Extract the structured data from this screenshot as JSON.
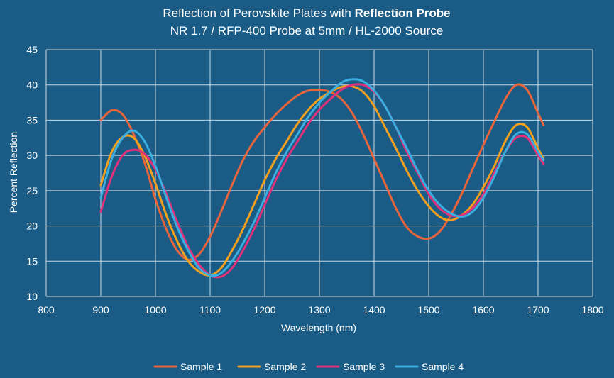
{
  "chart_data": {
    "type": "line",
    "title_main": "Reflection of Perovskite Plates with ",
    "title_bold": "Reflection Probe",
    "subtitle": "NR 1.7 / RFP-400 Probe at 5mm / HL-2000 Source",
    "xlabel": "Wavelength (nm)",
    "ylabel": "Percent Reflection",
    "xlim": [
      800,
      1800
    ],
    "ylim": [
      10,
      45
    ],
    "x_ticks": [
      800,
      900,
      1000,
      1100,
      1200,
      1300,
      1400,
      1500,
      1600,
      1700,
      1800
    ],
    "y_ticks": [
      10,
      15,
      20,
      25,
      30,
      35,
      40,
      45
    ],
    "grid": true,
    "legend_position": "bottom",
    "series": [
      {
        "name": "Sample 1",
        "color": "#e8643a",
        "x": [
          900,
          920,
          940,
          960,
          980,
          1000,
          1020,
          1040,
          1060,
          1080,
          1100,
          1120,
          1140,
          1160,
          1180,
          1200,
          1220,
          1240,
          1260,
          1280,
          1300,
          1320,
          1340,
          1360,
          1380,
          1400,
          1420,
          1440,
          1460,
          1480,
          1500,
          1520,
          1540,
          1560,
          1580,
          1600,
          1620,
          1640,
          1660,
          1680,
          1700,
          1710
        ],
        "values": [
          35.0,
          36.4,
          35.8,
          33.0,
          29.0,
          23.8,
          19.5,
          16.5,
          15.2,
          16.0,
          18.5,
          22.0,
          25.8,
          29.3,
          32.0,
          34.0,
          35.8,
          37.3,
          38.5,
          39.2,
          39.3,
          39.0,
          38.0,
          36.0,
          33.0,
          29.5,
          26.0,
          22.5,
          19.8,
          18.5,
          18.2,
          19.2,
          21.5,
          24.5,
          28.0,
          31.5,
          34.8,
          38.0,
          40.0,
          39.3,
          36.0,
          34.3
        ]
      },
      {
        "name": "Sample 2",
        "color": "#f2a01d",
        "x": [
          900,
          920,
          940,
          960,
          980,
          1000,
          1020,
          1040,
          1060,
          1080,
          1100,
          1120,
          1140,
          1160,
          1180,
          1200,
          1220,
          1240,
          1260,
          1280,
          1300,
          1320,
          1340,
          1360,
          1380,
          1400,
          1420,
          1440,
          1460,
          1480,
          1500,
          1520,
          1540,
          1560,
          1580,
          1600,
          1620,
          1640,
          1660,
          1680,
          1700,
          1710
        ],
        "values": [
          25.8,
          30.5,
          32.6,
          32.5,
          30.0,
          26.0,
          21.5,
          17.8,
          15.0,
          13.5,
          13.0,
          14.0,
          16.5,
          19.5,
          23.0,
          26.5,
          29.5,
          32.0,
          34.5,
          36.5,
          38.0,
          39.0,
          39.7,
          39.8,
          39.0,
          37.0,
          34.0,
          31.0,
          27.8,
          25.0,
          22.8,
          21.3,
          20.8,
          21.5,
          23.0,
          25.5,
          28.5,
          32.0,
          34.3,
          34.0,
          31.0,
          29.5
        ]
      },
      {
        "name": "Sample 3",
        "color": "#e0317a",
        "x": [
          900,
          920,
          940,
          960,
          980,
          1000,
          1020,
          1040,
          1060,
          1080,
          1100,
          1120,
          1140,
          1160,
          1180,
          1200,
          1220,
          1240,
          1260,
          1280,
          1300,
          1320,
          1340,
          1360,
          1380,
          1400,
          1420,
          1440,
          1460,
          1480,
          1500,
          1520,
          1540,
          1560,
          1580,
          1600,
          1620,
          1640,
          1660,
          1680,
          1700,
          1710
        ],
        "values": [
          22.0,
          27.0,
          30.0,
          30.8,
          30.2,
          28.0,
          24.5,
          20.5,
          17.0,
          14.5,
          13.0,
          12.8,
          14.0,
          16.5,
          19.5,
          23.0,
          26.5,
          29.5,
          32.0,
          34.5,
          36.5,
          38.0,
          39.3,
          40.0,
          40.0,
          39.0,
          37.0,
          34.0,
          30.5,
          27.5,
          24.5,
          22.5,
          21.5,
          21.5,
          22.5,
          24.5,
          27.5,
          30.5,
          32.5,
          32.5,
          30.0,
          28.8
        ]
      },
      {
        "name": "Sample 4",
        "color": "#3aaee0",
        "x": [
          900,
          920,
          940,
          960,
          980,
          1000,
          1020,
          1040,
          1060,
          1080,
          1100,
          1120,
          1140,
          1160,
          1180,
          1200,
          1220,
          1240,
          1260,
          1280,
          1300,
          1320,
          1340,
          1360,
          1380,
          1400,
          1420,
          1440,
          1460,
          1480,
          1500,
          1520,
          1540,
          1560,
          1580,
          1600,
          1620,
          1640,
          1660,
          1680,
          1700,
          1710
        ],
        "values": [
          24.0,
          29.5,
          32.5,
          33.5,
          32.0,
          28.5,
          24.0,
          19.8,
          16.5,
          14.0,
          13.0,
          13.3,
          15.0,
          17.5,
          20.5,
          24.0,
          27.5,
          30.5,
          33.0,
          35.5,
          37.5,
          39.0,
          40.3,
          40.8,
          40.5,
          39.2,
          37.0,
          34.0,
          31.0,
          27.8,
          25.0,
          23.0,
          21.8,
          21.3,
          22.0,
          24.0,
          27.0,
          30.5,
          33.0,
          33.0,
          30.5,
          29.3
        ]
      }
    ]
  }
}
